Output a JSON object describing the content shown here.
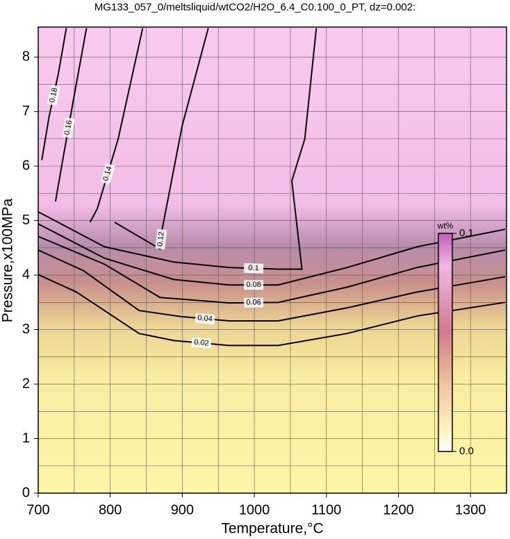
{
  "chart_data": {
    "type": "contour",
    "title": "MG133_057_0/meltsliquid/wtCO2/H2O_6.4_C0.100_0_PT, dz=0.002:",
    "x_label": "Temperature,°C",
    "y_label": "Pressure,x100MPa",
    "xlim": [
      700,
      1350
    ],
    "ylim": [
      0,
      8.55
    ],
    "xticks": [
      700,
      800,
      900,
      1000,
      1100,
      1200,
      1300
    ],
    "yticks": [
      0,
      1,
      2,
      3,
      4,
      5,
      6,
      7,
      8
    ],
    "xminorticks": [
      750,
      850,
      950,
      1050,
      1150,
      1250
    ],
    "yminorticks": [
      0.5,
      1.5,
      2.5,
      3.5,
      4.5,
      5.5,
      6.5,
      7.5
    ],
    "grid": true,
    "line_color": "#000000",
    "contours": [
      {
        "level": 0.02,
        "x": [
          700,
          753,
          840,
          888,
          965,
          1033,
          1129,
          1226,
          1348
        ],
        "y": [
          4.01,
          3.69,
          2.93,
          2.8,
          2.71,
          2.71,
          2.93,
          3.25,
          3.5
        ]
      },
      {
        "level": 0.04,
        "x": [
          700,
          763,
          840,
          898,
          965,
          1033,
          1129,
          1226,
          1348
        ],
        "y": [
          4.46,
          4.08,
          3.35,
          3.24,
          3.16,
          3.16,
          3.4,
          3.69,
          3.97
        ]
      },
      {
        "level": 0.06,
        "x": [
          700,
          792,
          869,
          965,
          1033,
          1129,
          1226,
          1348
        ],
        "y": [
          4.71,
          4.2,
          3.59,
          3.49,
          3.5,
          3.78,
          4.14,
          4.46
        ]
      },
      {
        "level": 0.08,
        "x": [
          700,
          792,
          888,
          965,
          1033,
          1129,
          1226,
          1348
        ],
        "y": [
          4.94,
          4.31,
          3.92,
          3.82,
          3.82,
          4.14,
          4.52,
          4.84
        ]
      },
      {
        "level": 0.1,
        "x": [
          700,
          792,
          888,
          965,
          1033,
          1066,
          1052,
          1070,
          1086
        ],
        "y": [
          5.16,
          4.52,
          4.24,
          4.14,
          4.11,
          4.11,
          5.73,
          6.5,
          8.53
        ]
      },
      {
        "level": 0.12,
        "x": [
          806,
          869,
          872,
          900,
          936
        ],
        "y": [
          4.97,
          4.48,
          4.84,
          6.75,
          8.53
        ]
      },
      {
        "level": 0.14,
        "x": [
          772,
          782,
          811,
          845
        ],
        "y": [
          4.97,
          5.22,
          6.5,
          8.53
        ]
      },
      {
        "level": 0.16,
        "x": [
          724,
          734,
          750,
          767
        ],
        "y": [
          5.35,
          6.11,
          7.3,
          8.53
        ]
      },
      {
        "level": 0.18,
        "x": [
          705,
          715,
          728,
          739
        ],
        "y": [
          6.11,
          6.9,
          7.7,
          8.53
        ]
      }
    ],
    "colorbar": {
      "label": "wt%",
      "lim": [
        0,
        0.1
      ],
      "ticks": [
        {
          "value": 0,
          "label": "0.0"
        },
        0.1
      ]
    }
  }
}
